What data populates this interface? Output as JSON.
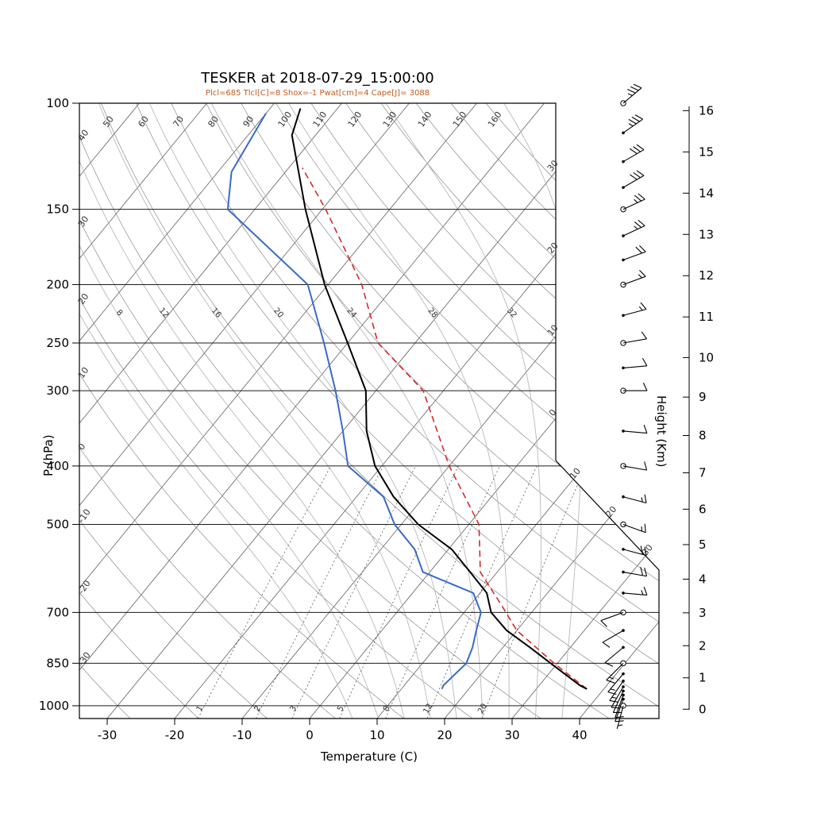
{
  "title": "TESKER at 2018-07-29_15:00:00",
  "subtitle": "Plcl=685 Tlcl[C]=8 Shox=-1 Pwat[cm]=4 Cape[J]= 3088",
  "axes": {
    "pressure_label": "P (hPa)",
    "pressure_ticks": [
      100,
      150,
      200,
      250,
      300,
      400,
      500,
      700,
      850,
      1000
    ],
    "temperature_label": "Temperature (C)",
    "temperature_ticks": [
      -30,
      -20,
      -10,
      0,
      10,
      20,
      30,
      40
    ],
    "height_label": "Height (Km)",
    "height_ticks": [
      0,
      1,
      2,
      3,
      4,
      5,
      6,
      7,
      8,
      9,
      10,
      11,
      12,
      13,
      14,
      15,
      16
    ]
  },
  "chart_data": {
    "type": "line",
    "variant": "skew-t-log-p-sounding",
    "station": "TESKER",
    "datetime": "2018-07-29_15:00:00",
    "indices": {
      "Plcl": 685,
      "Tlcl_C": 8,
      "Shox": -1,
      "Pwat_cm": 4,
      "Cape_J": 3088
    },
    "pressure_range_hPa": [
      100,
      1050
    ],
    "temperature_range_C": [
      -35,
      45
    ],
    "temperature_profile": [
      [
        938,
        37.5
      ],
      [
        925,
        36
      ],
      [
        850,
        29
      ],
      [
        800,
        24
      ],
      [
        750,
        18.5
      ],
      [
        700,
        14
      ],
      [
        650,
        11
      ],
      [
        600,
        6
      ],
      [
        550,
        0.5
      ],
      [
        500,
        -7.5
      ],
      [
        450,
        -14.5
      ],
      [
        400,
        -21
      ],
      [
        350,
        -26.5
      ],
      [
        300,
        -31.5
      ],
      [
        250,
        -40
      ],
      [
        200,
        -50.5
      ],
      [
        150,
        -62.5
      ],
      [
        113,
        -73.5
      ],
      [
        102,
        -75.5
      ]
    ],
    "dewpoint_profile": [
      [
        938,
        16
      ],
      [
        925,
        15.8
      ],
      [
        850,
        16.5
      ],
      [
        800,
        15.5
      ],
      [
        750,
        14
      ],
      [
        700,
        12.5
      ],
      [
        650,
        9
      ],
      [
        600,
        -1
      ],
      [
        550,
        -5
      ],
      [
        500,
        -11
      ],
      [
        450,
        -16
      ],
      [
        400,
        -25
      ],
      [
        350,
        -30
      ],
      [
        300,
        -36
      ],
      [
        250,
        -43.5
      ],
      [
        200,
        -53
      ],
      [
        150,
        -74
      ],
      [
        130,
        -78
      ],
      [
        104,
        -80
      ]
    ],
    "parcel_path": [
      [
        938,
        37.5
      ],
      [
        850,
        29.5
      ],
      [
        750,
        20
      ],
      [
        685,
        15
      ],
      [
        600,
        7.5
      ],
      [
        500,
        1.5
      ],
      [
        400,
        -10
      ],
      [
        300,
        -23
      ],
      [
        250,
        -35.5
      ],
      [
        200,
        -45
      ],
      [
        150,
        -59.5
      ],
      [
        128,
        -68
      ]
    ],
    "winds": [
      {
        "p": 100,
        "dir": 50,
        "spd": 35,
        "m": "c"
      },
      {
        "p": 112,
        "dir": 55,
        "spd": 35,
        "m": "d"
      },
      {
        "p": 125,
        "dir": 60,
        "spd": 30,
        "m": "d"
      },
      {
        "p": 138,
        "dir": 60,
        "spd": 30,
        "m": "d"
      },
      {
        "p": 150,
        "dir": 65,
        "spd": 25,
        "m": "c"
      },
      {
        "p": 166,
        "dir": 65,
        "spd": 25,
        "m": "d"
      },
      {
        "p": 182,
        "dir": 70,
        "spd": 20,
        "m": "d"
      },
      {
        "p": 200,
        "dir": 70,
        "spd": 15,
        "m": "c"
      },
      {
        "p": 225,
        "dir": 75,
        "spd": 15,
        "m": "d"
      },
      {
        "p": 250,
        "dir": 80,
        "spd": 10,
        "m": "c"
      },
      {
        "p": 275,
        "dir": 85,
        "spd": 10,
        "m": "d"
      },
      {
        "p": 300,
        "dir": 90,
        "spd": 10,
        "m": "c"
      },
      {
        "p": 350,
        "dir": 95,
        "spd": 10,
        "m": "d"
      },
      {
        "p": 400,
        "dir": 100,
        "spd": 10,
        "m": "c"
      },
      {
        "p": 450,
        "dir": 105,
        "spd": 15,
        "m": "d"
      },
      {
        "p": 500,
        "dir": 110,
        "spd": 15,
        "m": "c"
      },
      {
        "p": 550,
        "dir": 105,
        "spd": 20,
        "m": "d"
      },
      {
        "p": 600,
        "dir": 100,
        "spd": 20,
        "m": "d"
      },
      {
        "p": 650,
        "dir": 95,
        "spd": 15,
        "m": "d"
      },
      {
        "p": 700,
        "dir": 250,
        "spd": 10,
        "m": "c"
      },
      {
        "p": 750,
        "dir": 240,
        "spd": 10,
        "m": "d"
      },
      {
        "p": 800,
        "dir": 230,
        "spd": 10,
        "m": "d"
      },
      {
        "p": 850,
        "dir": 225,
        "spd": 15,
        "m": "c"
      },
      {
        "p": 885,
        "dir": 220,
        "spd": 15,
        "m": "d"
      },
      {
        "p": 910,
        "dir": 215,
        "spd": 15,
        "m": "d"
      },
      {
        "p": 930,
        "dir": 210,
        "spd": 10,
        "m": "d"
      },
      {
        "p": 945,
        "dir": 205,
        "spd": 10,
        "m": "d"
      },
      {
        "p": 960,
        "dir": 200,
        "spd": 10,
        "m": "d"
      },
      {
        "p": 975,
        "dir": 200,
        "spd": 8,
        "m": "d"
      },
      {
        "p": 1000,
        "dir": 195,
        "spd": 5,
        "m": "c"
      }
    ],
    "grid": {
      "isotherms_C": [
        -120,
        -110,
        -100,
        -90,
        -80,
        -70,
        -60,
        -50,
        -40,
        -30,
        -20,
        -10,
        0,
        10,
        20,
        30,
        40
      ],
      "dry_adiabats_C": [
        -30,
        -20,
        -10,
        0,
        10,
        20,
        30,
        40,
        50,
        60,
        70,
        80,
        90,
        100,
        110,
        120,
        130,
        140,
        150,
        160
      ],
      "moist_adiabats_C": [
        4,
        8,
        12,
        16,
        20,
        24,
        28,
        32,
        36
      ],
      "mixing_ratio_g_kg": [
        1,
        2,
        3,
        5,
        8,
        12,
        20
      ],
      "labels": {
        "top_dry_adiabats": [
          50,
          60,
          70,
          80,
          90,
          100,
          110,
          120,
          130,
          140,
          150,
          160
        ],
        "left_dry_adiabats": [
          40,
          30,
          20,
          10,
          0,
          -10,
          -20,
          -30
        ],
        "right_isotherms_upper": [
          {
            "text": "30",
            "t": -30
          },
          {
            "text": "20",
            "t": -20
          },
          {
            "text": "10",
            "t": -10
          },
          {
            "text": "0",
            "t": 0
          }
        ],
        "right_isotherms_lower": [
          {
            "text": "10",
            "t": 10
          },
          {
            "text": "20",
            "t": 20
          },
          {
            "text": "30",
            "t": 30
          }
        ],
        "moist_labels": [
          8,
          12,
          16,
          20,
          24,
          28,
          32
        ],
        "mixing_labels": [
          1,
          2,
          3,
          5,
          8,
          12,
          20
        ]
      }
    }
  },
  "colors": {
    "temperature": "#000000",
    "dewpoint": "#3a6bc4",
    "parcel": "#d42a2a",
    "subtitle": "#bf5b1d",
    "isotherm": "#555555",
    "dry_adiabat": "#787878",
    "moist_adiabat": "#b8b8b8",
    "mixing_ratio": "#444444",
    "pressure_line": "#1a1a1a",
    "boundary": "#000000",
    "barb": "#000000",
    "label": "#333333"
  }
}
